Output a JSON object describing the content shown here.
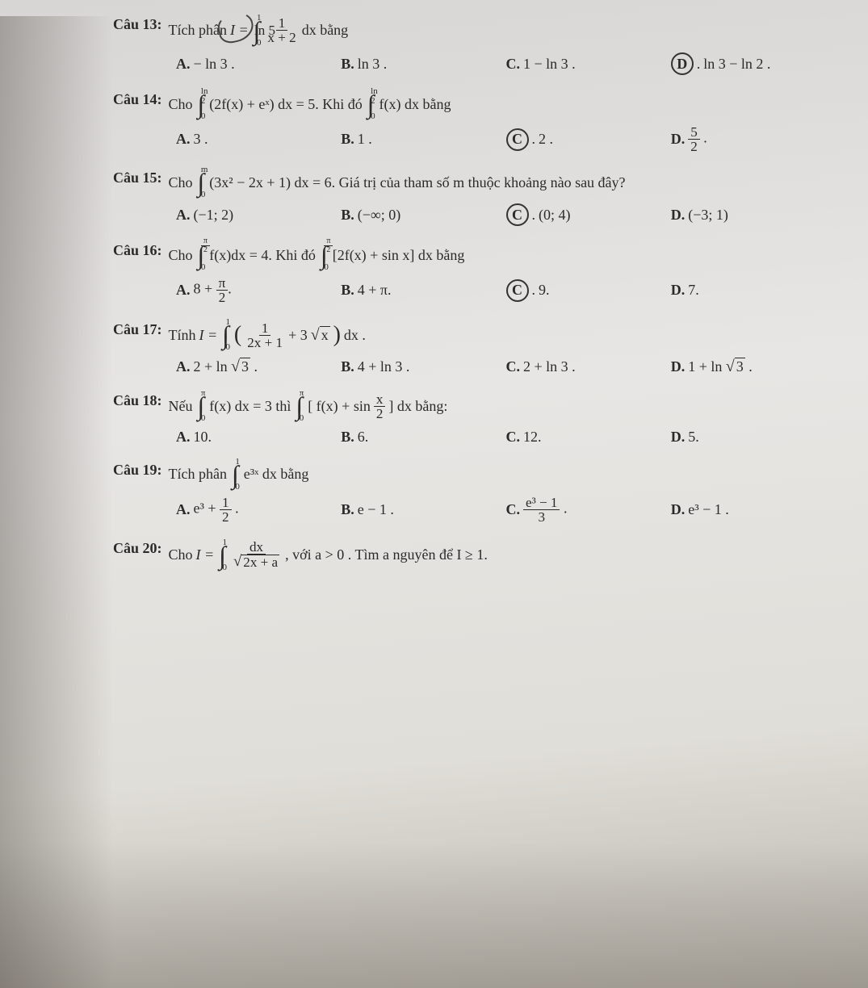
{
  "questions": [
    {
      "label": "Câu 13:",
      "prompt_pre": "Tích phân ",
      "int_top": "1",
      "int_bot": "0",
      "integrand": {
        "num": "1",
        "den": "x + 2",
        "suffix": " dx"
      },
      "prompt_post": " bằng",
      "prefix_eq": "I = ",
      "opts": [
        {
          "letter": "A.",
          "text": "− ln 3 .",
          "circled": false
        },
        {
          "letter": "B.",
          "text": "ln 3 .",
          "circled": false
        },
        {
          "letter": "C.",
          "text": "1 − ln 3 .",
          "circled": false
        },
        {
          "letter": "D.",
          "text": "ln 3 − ln 2 .",
          "circled": true
        }
      ]
    },
    {
      "label": "Câu 14:",
      "prompt_pre": "Cho ",
      "int_top": "ln 2",
      "int_bot": "0",
      "integrand_plain": "(2f(x) + eˣ) dx = 5",
      "mid": ". Khi đó ",
      "int2_top": "ln 2",
      "int2_bot": "0",
      "integrand2_plain": "f(x) dx",
      "prompt_post": " bằng",
      "opts": [
        {
          "letter": "A.",
          "text": "3 .",
          "circled": false
        },
        {
          "letter": "B.",
          "text": "1 .",
          "circled": false
        },
        {
          "letter": "C.",
          "text": "2 .",
          "circled": true
        },
        {
          "letter": "D.",
          "text_frac": {
            "num": "5",
            "den": "2"
          },
          "suffix": " .",
          "circled": false
        }
      ]
    },
    {
      "label": "Câu 15:",
      "prompt_pre": "Cho ",
      "int_top": "m",
      "int_bot": "0",
      "integrand_plain": "(3x² − 2x + 1) dx = 6",
      "prompt_post": ". Giá trị của tham số  m  thuộc khoảng nào sau đây?",
      "opts": [
        {
          "letter": "A.",
          "text": "(−1; 2)",
          "circled": false
        },
        {
          "letter": "B.",
          "text": "(−∞; 0)",
          "circled": false
        },
        {
          "letter": "C.",
          "text": "(0; 4)",
          "circled": true
        },
        {
          "letter": "D.",
          "text": "(−3; 1)",
          "circled": false
        }
      ]
    },
    {
      "label": "Câu 16:",
      "prompt_pre": "Cho ",
      "int_top_frac": {
        "num": "π",
        "den": "2"
      },
      "int_bot": "0",
      "integrand_plain": "f(x)dx = 4",
      "mid": ". Khi đó ",
      "int2_top_frac": {
        "num": "π",
        "den": "2"
      },
      "int2_bot": "0",
      "integrand2_plain": "[2f(x) + sin x] dx",
      "prompt_post": " bằng",
      "opts": [
        {
          "letter": "A.",
          "text_pre": "8 + ",
          "text_frac": {
            "num": "π",
            "den": "2"
          },
          "suffix": ".",
          "circled": false
        },
        {
          "letter": "B.",
          "text": "4 + π.",
          "circled": false
        },
        {
          "letter": "C.",
          "text": "9.",
          "circled": true
        },
        {
          "letter": "D.",
          "text": "7.",
          "circled": false
        }
      ]
    },
    {
      "label": "Câu 17:",
      "prompt_pre": "Tính ",
      "prefix_eq": "I = ",
      "int_top": "1",
      "int_bot": "0",
      "integrand_paren": true,
      "integrand_frac": {
        "num": "1",
        "den": "2x + 1"
      },
      "integrand_plus": " + 3",
      "integrand_sqrt": "x",
      "integrand_suffix": " dx .",
      "opts": [
        {
          "letter": "A.",
          "text_pre": "2 + ln ",
          "text_sqrt": "3",
          "suffix": " .",
          "circled": false
        },
        {
          "letter": "B.",
          "text": "4 + ln 3 .",
          "circled": false
        },
        {
          "letter": "C.",
          "text": "2 + ln 3 .",
          "circled": false
        },
        {
          "letter": "D.",
          "text_pre": "1 + ln ",
          "text_sqrt": "3",
          "suffix": " .",
          "circled": false
        }
      ]
    },
    {
      "label": "Câu 18:",
      "prompt_pre": "Nếu ",
      "int_top": "π",
      "int_bot": "0",
      "integrand_plain": "f(x) dx = 3",
      "mid": " thì ",
      "int2_top": "π",
      "int2_bot": "0",
      "integrand2_bracket_pre": "[ f(x) + sin ",
      "integrand2_frac": {
        "num": "x",
        "den": "2"
      },
      "integrand2_bracket_post": " ] dx",
      "prompt_post": " bằng:",
      "opts": [
        {
          "letter": "A.",
          "text": "10.",
          "circled": false
        },
        {
          "letter": "B.",
          "text": "6.",
          "circled": false
        },
        {
          "letter": "C.",
          "text": "12.",
          "circled": false
        },
        {
          "letter": "D.",
          "text": "5.",
          "circled": false
        }
      ]
    },
    {
      "label": "Câu 19:",
      "prompt_pre": "Tích phân ",
      "int_top": "1",
      "int_bot": "0",
      "integrand_plain": "e³ˣ dx",
      "prompt_post": " bằng",
      "opts": [
        {
          "letter": "A.",
          "text_pre": "e³ + ",
          "text_frac": {
            "num": "1",
            "den": "2"
          },
          "suffix": " .",
          "circled": false
        },
        {
          "letter": "B.",
          "text": "e − 1 .",
          "circled": false
        },
        {
          "letter": "C.",
          "text_frac": {
            "num": "e³ − 1",
            "den": "3"
          },
          "suffix": " .",
          "circled": false
        },
        {
          "letter": "D.",
          "text": "e³ − 1 .",
          "circled": false
        }
      ]
    },
    {
      "label": "Câu 20:",
      "prompt_pre": "Cho ",
      "prefix_eq": "I = ",
      "int_top": "1",
      "int_bot": "0",
      "integrand_frac_sqrt": {
        "num": "dx",
        "den_pre": "",
        "den_sqrt": "2x + a"
      },
      "prompt_post": ", với  a > 0 . Tìm  a  nguyên để  I ≥ 1."
    }
  ],
  "ln5_text": "ln 5",
  "colors": {
    "text": "#2a2a2a",
    "circle": "#333333"
  }
}
